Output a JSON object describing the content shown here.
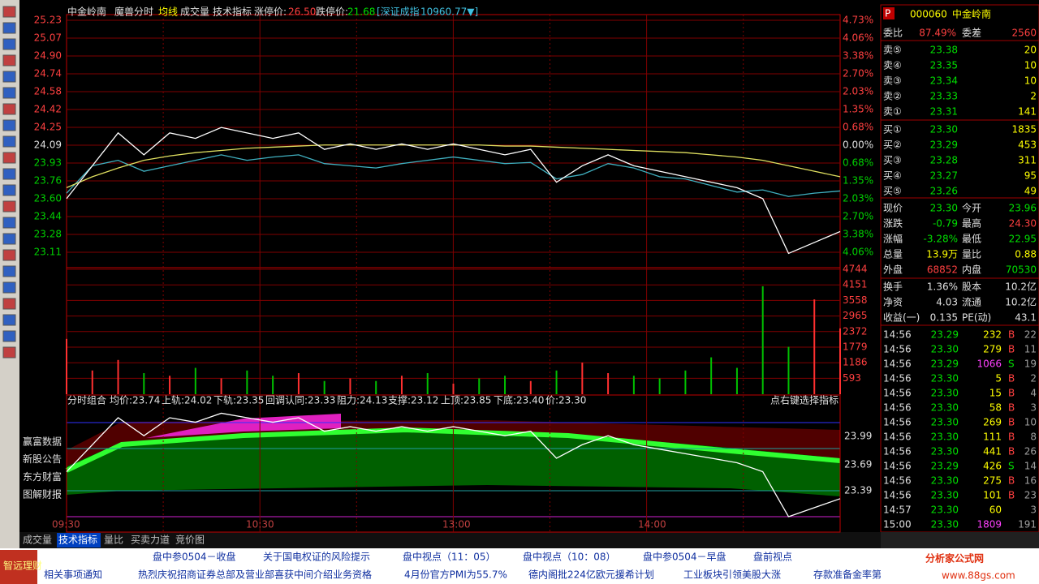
{
  "header": {
    "name": "中金岭南",
    "mode": "魔兽分时",
    "avg_line": "均线",
    "volume": "成交量",
    "tech": "技术指标",
    "limit_up_label": "涨停价:",
    "limit_up": "26.50",
    "limit_down_label": "跌停价:",
    "limit_down": "21.68",
    "index_name": "[深证成指",
    "index_value": "10960.77▼]"
  },
  "price_axis": [
    "25.23",
    "25.07",
    "24.90",
    "24.74",
    "24.58",
    "24.42",
    "24.25",
    "24.09",
    "23.93",
    "23.76",
    "23.60",
    "23.44",
    "23.28",
    "23.11"
  ],
  "pct_axis": [
    "4.73%",
    "4.06%",
    "3.38%",
    "2.70%",
    "2.03%",
    "1.35%",
    "0.68%",
    "0.00%",
    "0.68%",
    "1.35%",
    "2.03%",
    "2.70%",
    "3.38%",
    "4.06%"
  ],
  "volume_axis": [
    "4744",
    "4151",
    "3558",
    "2965",
    "2372",
    "1779",
    "1186",
    "593"
  ],
  "time_axis": [
    "09:30",
    "10:30",
    "13:00",
    "14:00"
  ],
  "intraday": {
    "xlim": [
      0,
      240
    ],
    "ylim": [
      22.97,
      25.28
    ],
    "vlim": [
      0,
      4744
    ],
    "ilim": [
      23.1,
      24.2
    ],
    "minutes": [
      0,
      8,
      16,
      24,
      32,
      40,
      48,
      56,
      64,
      72,
      80,
      88,
      96,
      104,
      112,
      120,
      128,
      136,
      144,
      152,
      160,
      168,
      176,
      184,
      192,
      200,
      208,
      216,
      224,
      232,
      240
    ],
    "price": [
      23.6,
      23.9,
      24.2,
      24.0,
      24.2,
      24.15,
      24.25,
      24.2,
      24.15,
      24.2,
      24.05,
      24.1,
      24.05,
      24.1,
      24.05,
      24.1,
      24.05,
      24.0,
      24.05,
      23.75,
      23.9,
      24.0,
      23.9,
      23.85,
      23.8,
      23.75,
      23.7,
      23.6,
      23.1,
      23.2,
      23.3
    ],
    "avg": [
      23.7,
      23.8,
      23.88,
      23.95,
      23.99,
      24.02,
      24.04,
      24.06,
      24.07,
      24.08,
      24.09,
      24.09,
      24.09,
      24.09,
      24.09,
      24.09,
      24.09,
      24.08,
      24.08,
      24.07,
      24.06,
      24.05,
      24.04,
      24.03,
      24.02,
      24.0,
      23.98,
      23.95,
      23.9,
      23.85,
      23.8
    ],
    "index": [
      23.65,
      23.9,
      23.95,
      23.85,
      23.9,
      23.95,
      24.0,
      23.95,
      23.98,
      24.0,
      23.92,
      23.9,
      23.88,
      23.92,
      23.95,
      23.98,
      23.95,
      23.92,
      23.93,
      23.78,
      23.82,
      23.92,
      23.88,
      23.8,
      23.78,
      23.72,
      23.66,
      23.68,
      23.62,
      23.65,
      23.67
    ],
    "volume": [
      2100,
      900,
      1300,
      800,
      700,
      1000,
      600,
      900,
      700,
      800,
      500,
      600,
      500,
      700,
      800,
      400,
      600,
      700,
      500,
      900,
      1200,
      800,
      700,
      600,
      900,
      1400,
      1000,
      4100,
      1800,
      3600,
      2500
    ]
  },
  "indicator": {
    "items": [
      "分时组合",
      "均价:23.74",
      "上轨:24.02",
      "下轨:23.35",
      "回调认同:23.33",
      "阻力:24.13",
      "支撑:23.12",
      "上顶:23.85",
      "下底:23.40",
      "价:23.30"
    ],
    "hint": "点右键选择指标",
    "axis": [
      "23.99",
      "23.69",
      "23.39"
    ],
    "side": [
      "赢富数据",
      "新股公告",
      "东方财富",
      "图解财报"
    ]
  },
  "tabs": [
    "成交量",
    "技术指标",
    "量比",
    "买卖力道",
    "竞价图"
  ],
  "quote": {
    "flag": "P",
    "code": "000060",
    "name": "中金岭南",
    "wb_label": "委比",
    "wb": "87.49%",
    "wc_label": "委差",
    "wc": "2560",
    "asks": [
      [
        "卖⑤",
        "23.38",
        "20"
      ],
      [
        "卖④",
        "23.35",
        "10"
      ],
      [
        "卖③",
        "23.34",
        "10"
      ],
      [
        "卖②",
        "23.33",
        "2"
      ],
      [
        "卖①",
        "23.31",
        "141"
      ]
    ],
    "bids": [
      [
        "买①",
        "23.30",
        "1835"
      ],
      [
        "买②",
        "23.29",
        "453"
      ],
      [
        "买③",
        "23.28",
        "311"
      ],
      [
        "买④",
        "23.27",
        "95"
      ],
      [
        "买⑤",
        "23.26",
        "49"
      ]
    ],
    "stats": [
      [
        "现价",
        "23.30",
        "今开",
        "23.96"
      ],
      [
        "涨跌",
        "-0.79",
        "最高",
        "24.30"
      ],
      [
        "涨幅",
        "-3.28%",
        "最低",
        "22.95"
      ],
      [
        "总量",
        "13.9万",
        "量比",
        "0.88"
      ],
      [
        "外盘",
        "68852",
        "内盘",
        "70530"
      ],
      [
        "换手",
        "1.36%",
        "股本",
        "10.2亿"
      ],
      [
        "净资",
        "4.03",
        "流通",
        "10.2亿"
      ],
      [
        "收益(一)",
        "0.135",
        "PE(动)",
        "43.1"
      ]
    ],
    "trades": [
      [
        "14:56",
        "23.29",
        "232",
        "B",
        "22"
      ],
      [
        "14:56",
        "23.30",
        "279",
        "B",
        "11"
      ],
      [
        "14:56",
        "23.29",
        "1066",
        "S",
        "19"
      ],
      [
        "14:56",
        "23.30",
        "5",
        "B",
        "2"
      ],
      [
        "14:56",
        "23.30",
        "15",
        "B",
        "4"
      ],
      [
        "14:56",
        "23.30",
        "58",
        "B",
        "3"
      ],
      [
        "14:56",
        "23.30",
        "269",
        "B",
        "10"
      ],
      [
        "14:56",
        "23.30",
        "111",
        "B",
        "8"
      ],
      [
        "14:56",
        "23.30",
        "441",
        "B",
        "26"
      ],
      [
        "14:56",
        "23.29",
        "426",
        "S",
        "14"
      ],
      [
        "14:56",
        "23.30",
        "275",
        "B",
        "16"
      ],
      [
        "14:56",
        "23.30",
        "101",
        "B",
        "23"
      ],
      [
        "14:57",
        "23.30",
        "60",
        "",
        "3"
      ],
      [
        "15:00",
        "23.30",
        "1809",
        "",
        "191"
      ]
    ]
  },
  "news": {
    "logo": "智远理财",
    "row1": [
      "盘中参0504－收盘",
      "关于国电权证的风险提示",
      "盘中视点（11：05）",
      "盘中视点（10：08）",
      "盘中参0504－早盘",
      "盘前视点"
    ],
    "row2": [
      "相关事项通知",
      "热烈庆祝招商证券总部及营业部喜获中间介绍业务资格",
      "4月份官方PMI为55.7%",
      "德内阁批224亿欧元援希计划",
      "工业板块引领美股大涨",
      "存款准备金率第二"
    ],
    "brand": "分析家公式网",
    "site": "www.88gs.com"
  }
}
